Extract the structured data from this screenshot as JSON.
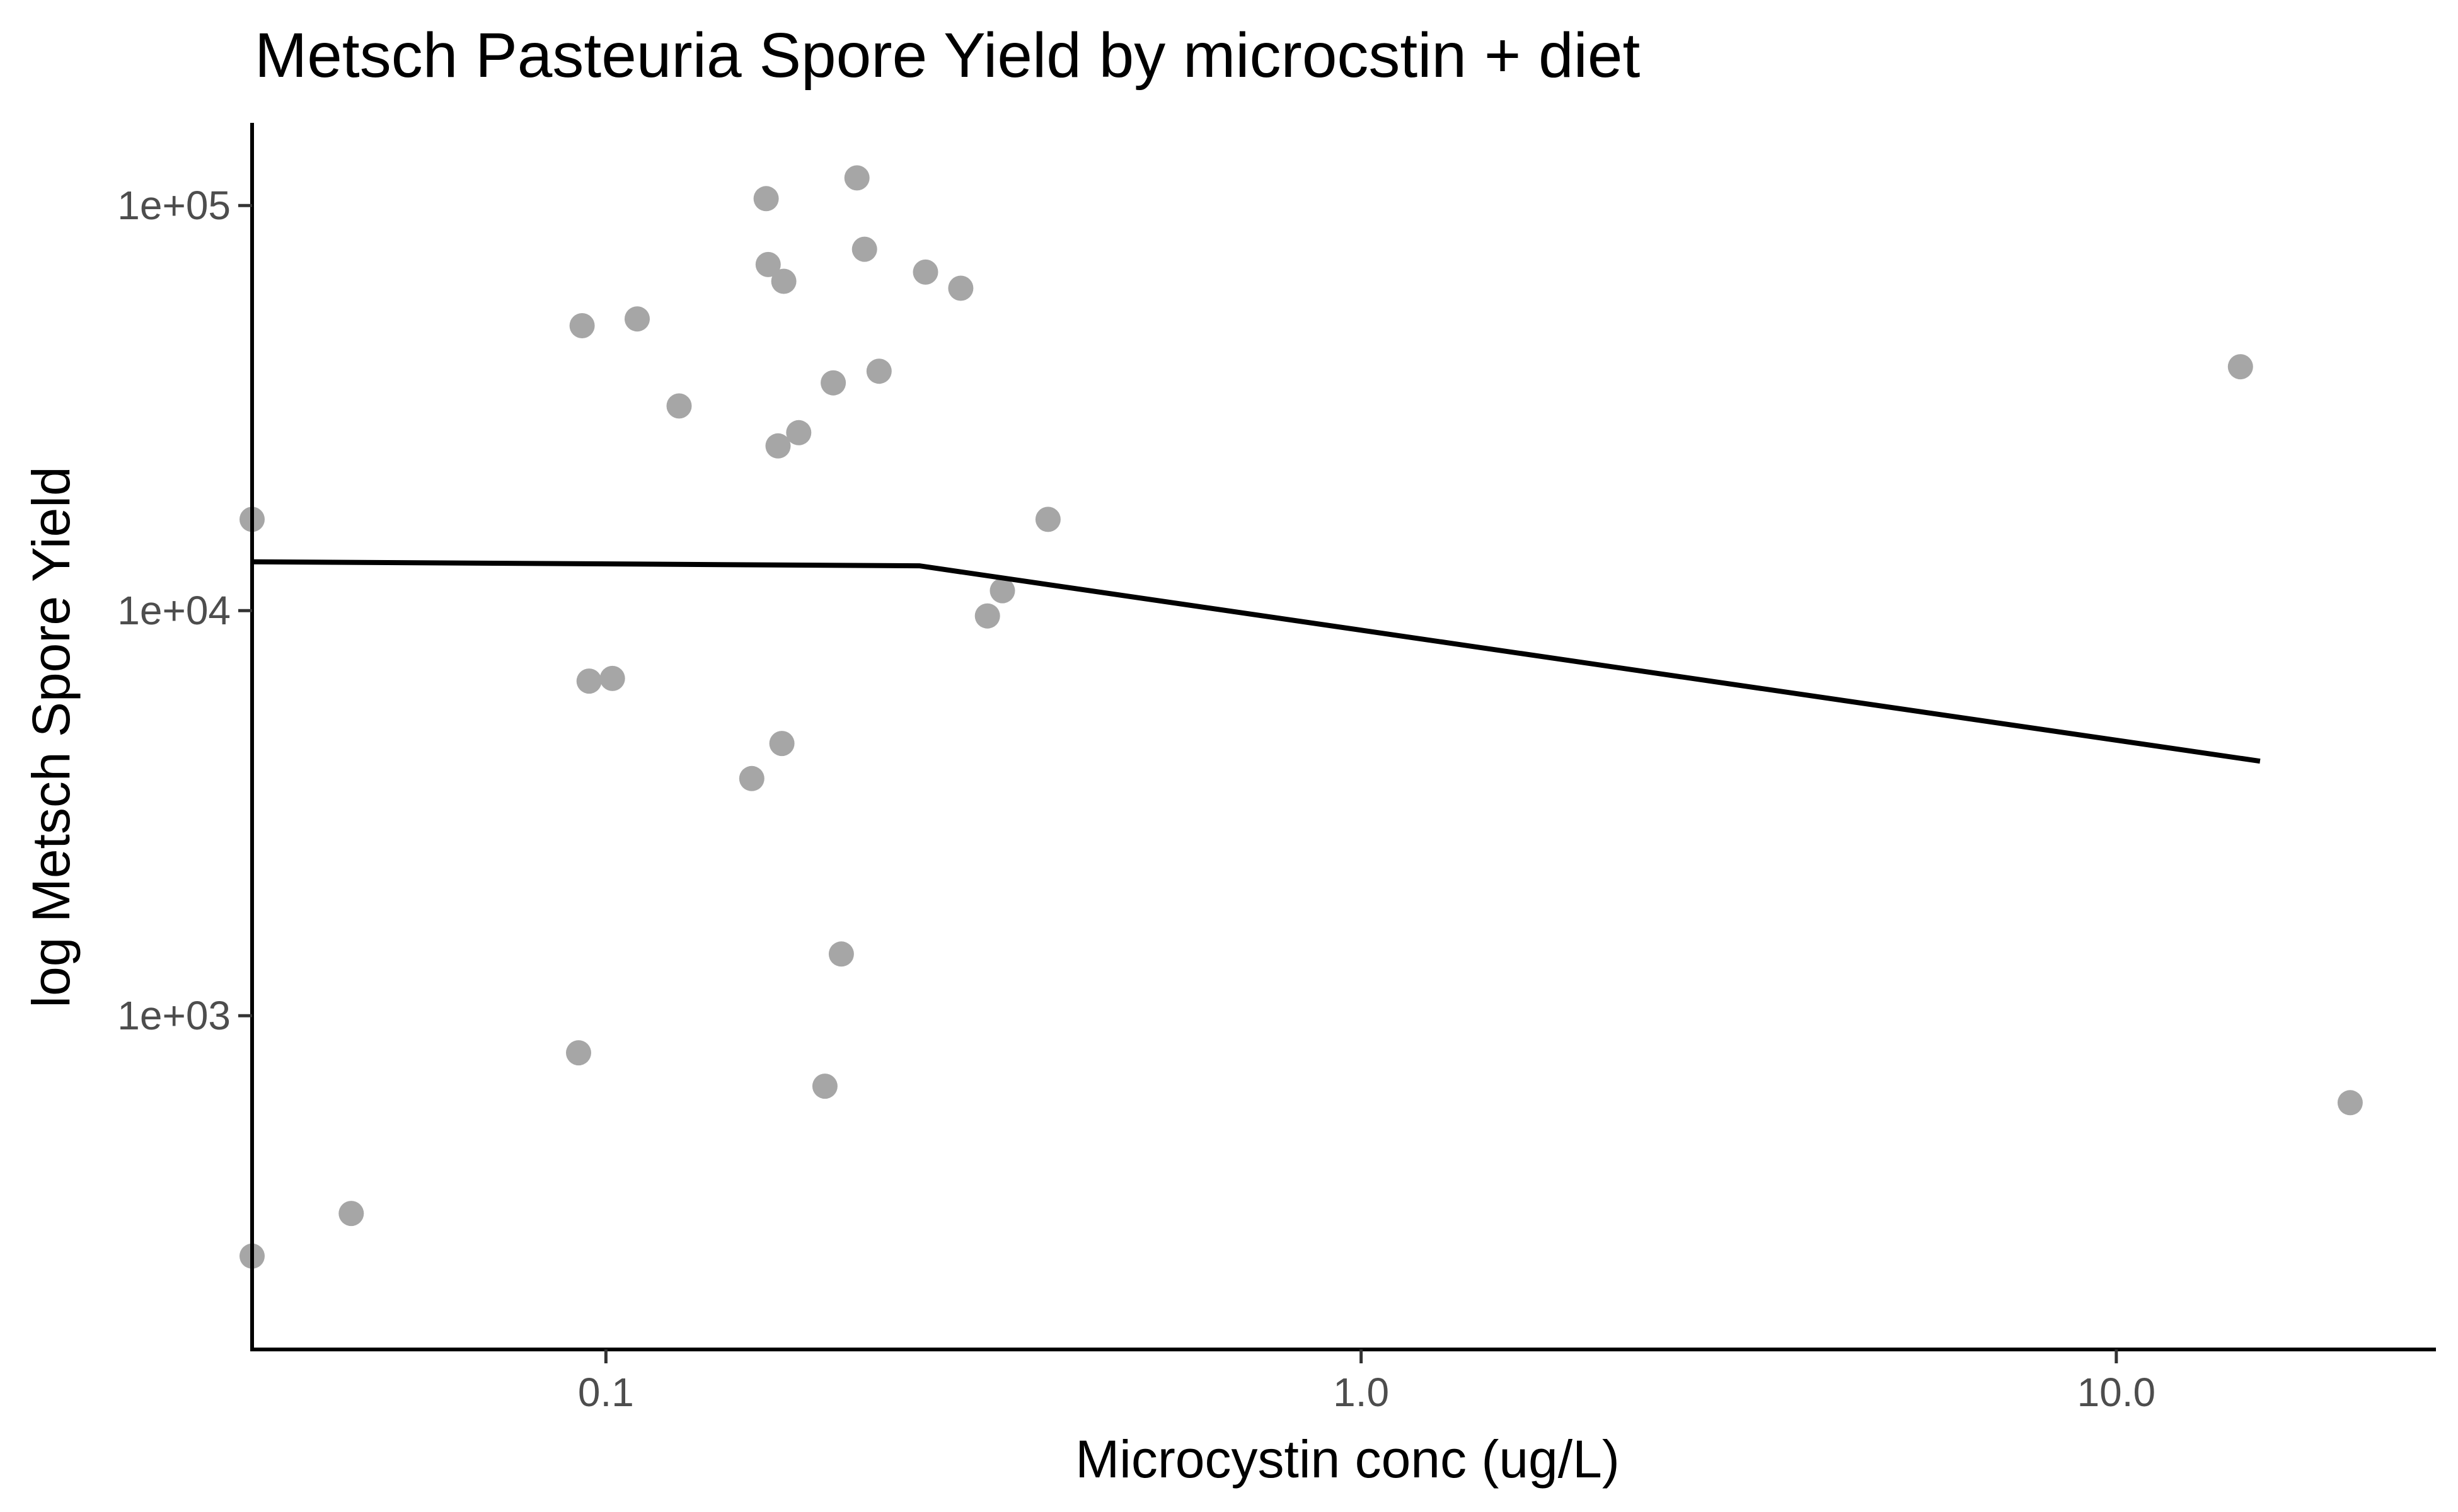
{
  "chart_data": {
    "type": "scatter",
    "title": "Metsch Pasteuria Spore Yield by microcstin + diet",
    "xlabel": "Microcystin conc (ug/L)",
    "ylabel": "log Metsch Spore Yield",
    "x_scale": "log10",
    "y_scale": "log10",
    "xlim": [
      0.034,
      26.5
    ],
    "ylim": [
      150,
      160000
    ],
    "x_ticks": [
      {
        "value": 0.1,
        "label": "0.1"
      },
      {
        "value": 1.0,
        "label": "1.0"
      },
      {
        "value": 10.0,
        "label": "10.0"
      }
    ],
    "y_ticks": [
      {
        "value": 1000,
        "label": "1e+03"
      },
      {
        "value": 10000,
        "label": "1e+04"
      },
      {
        "value": 100000,
        "label": "1e+05"
      }
    ],
    "grid": false,
    "legend": "none",
    "point_color": "#a6a6a6",
    "line_color": "#000000",
    "points": [
      {
        "x": 0.034,
        "y": 16800
      },
      {
        "x": 0.034,
        "y": 255
      },
      {
        "x": 0.046,
        "y": 325
      },
      {
        "x": 0.092,
        "y": 810
      },
      {
        "x": 0.093,
        "y": 50500
      },
      {
        "x": 0.095,
        "y": 6700
      },
      {
        "x": 0.102,
        "y": 6800
      },
      {
        "x": 0.11,
        "y": 52500
      },
      {
        "x": 0.125,
        "y": 32000
      },
      {
        "x": 0.156,
        "y": 3850
      },
      {
        "x": 0.163,
        "y": 104000
      },
      {
        "x": 0.164,
        "y": 71500
      },
      {
        "x": 0.169,
        "y": 25500
      },
      {
        "x": 0.171,
        "y": 4700
      },
      {
        "x": 0.172,
        "y": 65000
      },
      {
        "x": 0.18,
        "y": 27500
      },
      {
        "x": 0.195,
        "y": 670
      },
      {
        "x": 0.2,
        "y": 36500
      },
      {
        "x": 0.205,
        "y": 1420
      },
      {
        "x": 0.215,
        "y": 117000
      },
      {
        "x": 0.22,
        "y": 78000
      },
      {
        "x": 0.23,
        "y": 39000
      },
      {
        "x": 0.265,
        "y": 68500
      },
      {
        "x": 0.295,
        "y": 62500
      },
      {
        "x": 0.32,
        "y": 9700
      },
      {
        "x": 0.335,
        "y": 11200
      },
      {
        "x": 0.385,
        "y": 16800
      },
      {
        "x": 14.6,
        "y": 40000
      },
      {
        "x": 20.4,
        "y": 610
      }
    ],
    "fit_line": [
      {
        "x": 0.034,
        "y": 13200
      },
      {
        "x": 0.26,
        "y": 12900
      },
      {
        "x": 15.5,
        "y": 4250
      }
    ]
  }
}
